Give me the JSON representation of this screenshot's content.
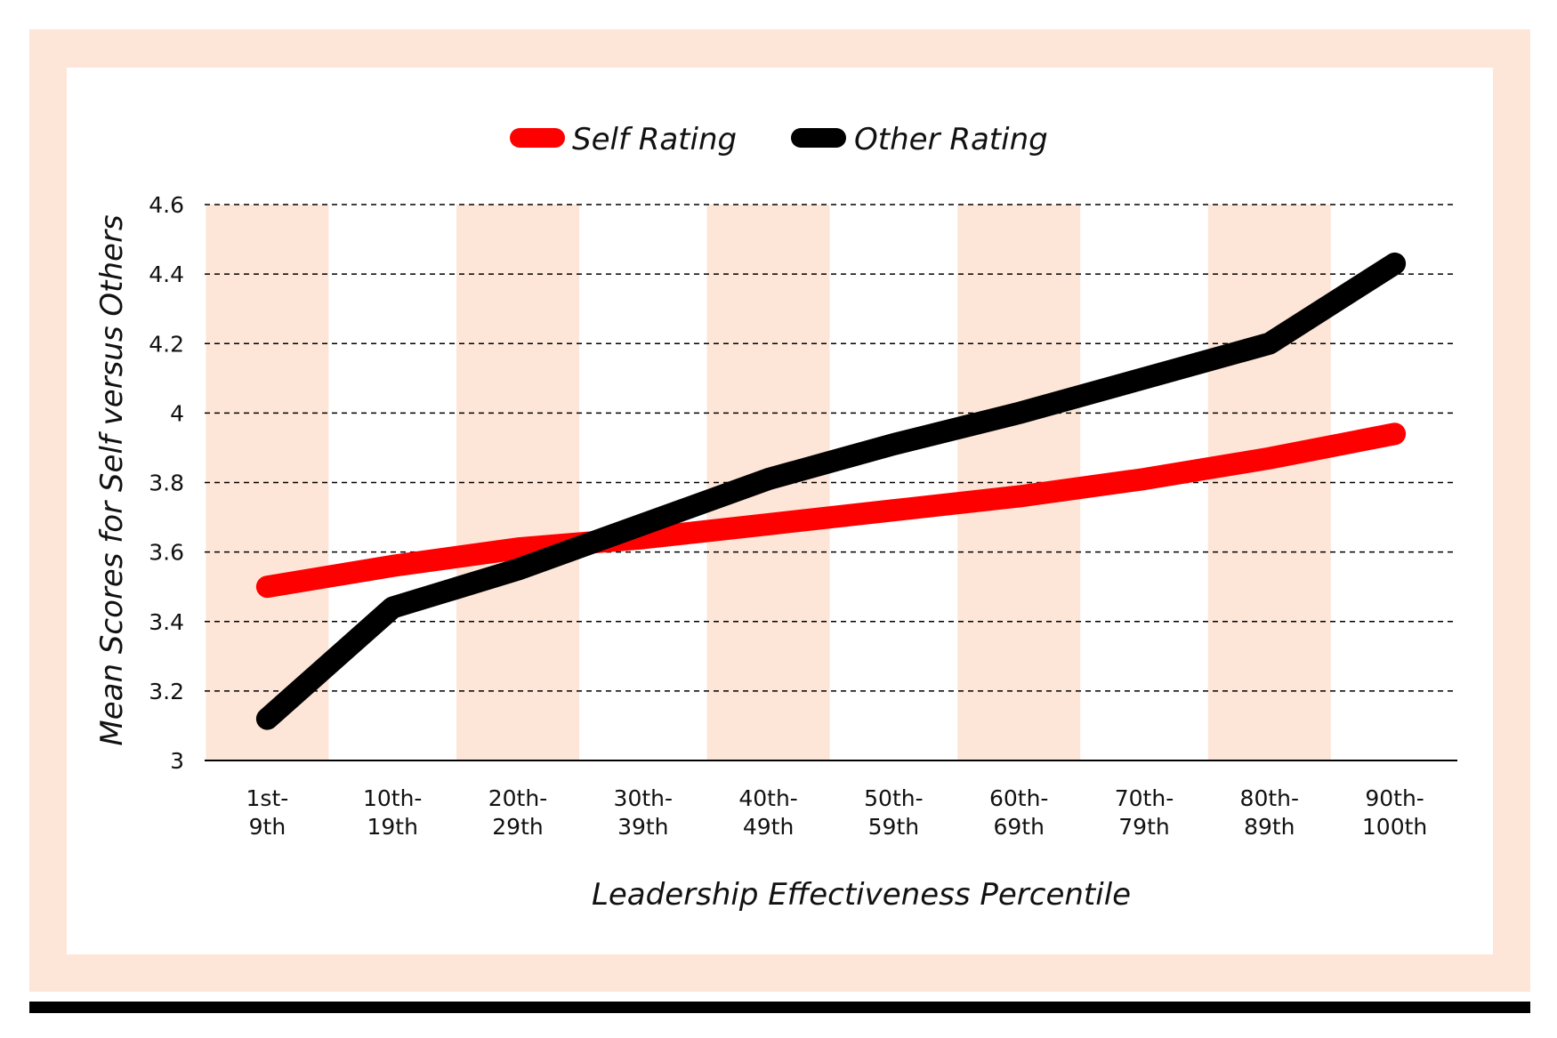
{
  "chart_data": {
    "type": "line",
    "xlabel": "Leadership Effectiveness Percentile",
    "ylabel": "Mean Scores for Self versus Others",
    "categories": [
      [
        "1st-",
        "9th"
      ],
      [
        "10th-",
        "19th"
      ],
      [
        "20th-",
        "29th"
      ],
      [
        "30th-",
        "39th"
      ],
      [
        "40th-",
        "49th"
      ],
      [
        "50th-",
        "59th"
      ],
      [
        "60th-",
        "69th"
      ],
      [
        "70th-",
        "79th"
      ],
      [
        "80th-",
        "89th"
      ],
      [
        "90th-",
        "100th"
      ]
    ],
    "yticks": [
      "3",
      "3.2",
      "3.4",
      "3.6",
      "3.8",
      "4",
      "4.2",
      "4.4",
      "4.6"
    ],
    "ylim": [
      3,
      4.6
    ],
    "grid": "horizontal-dashed",
    "legend_position": "top",
    "series": [
      {
        "name": "Self Rating",
        "color": "#ff0000",
        "values": [
          3.5,
          3.56,
          3.61,
          3.64,
          3.68,
          3.72,
          3.76,
          3.81,
          3.87,
          3.94
        ]
      },
      {
        "name": "Other Rating",
        "color": "#000000",
        "values": [
          3.12,
          3.44,
          3.55,
          3.68,
          3.81,
          3.91,
          4.0,
          4.1,
          4.2,
          4.43
        ]
      }
    ],
    "band_color": "#fde6d8"
  }
}
